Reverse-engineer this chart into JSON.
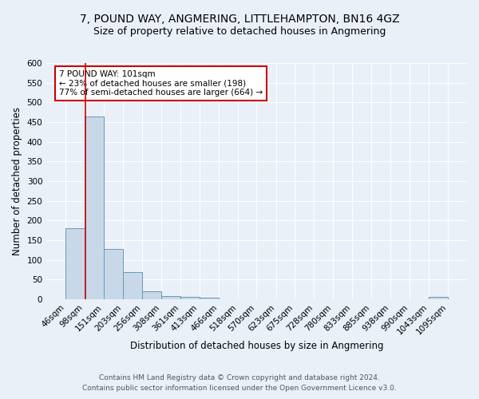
{
  "title": "7, POUND WAY, ANGMERING, LITTLEHAMPTON, BN16 4GZ",
  "subtitle": "Size of property relative to detached houses in Angmering",
  "xlabel": "Distribution of detached houses by size in Angmering",
  "ylabel": "Number of detached properties",
  "footnote1": "Contains HM Land Registry data © Crown copyright and database right 2024.",
  "footnote2": "Contains public sector information licensed under the Open Government Licence v3.0.",
  "bar_edges": [
    46,
    98,
    151,
    203,
    256,
    308,
    361,
    413,
    466,
    518,
    570,
    623,
    675,
    728,
    780,
    833,
    885,
    938,
    990,
    1043,
    1095
  ],
  "bar_heights": [
    180,
    465,
    128,
    70,
    20,
    8,
    6,
    5,
    0,
    0,
    0,
    0,
    0,
    0,
    0,
    0,
    0,
    0,
    0,
    6,
    0
  ],
  "bar_color": "#c8d8e8",
  "bar_edgecolor": "#6699bb",
  "vline_x": 101,
  "vline_color": "#cc0000",
  "annotation_text": "7 POUND WAY: 101sqm\n← 23% of detached houses are smaller (198)\n77% of semi-detached houses are larger (664) →",
  "annotation_box_color": "white",
  "annotation_box_edgecolor": "#cc0000",
  "ylim": [
    0,
    600
  ],
  "yticks": [
    0,
    50,
    100,
    150,
    200,
    250,
    300,
    350,
    400,
    450,
    500,
    550,
    600
  ],
  "bg_color": "#eaf0f8",
  "plot_bg_color": "#eaf0f8",
  "grid_color": "white",
  "title_fontsize": 10,
  "subtitle_fontsize": 9,
  "label_fontsize": 8.5,
  "tick_fontsize": 7.5,
  "footnote_fontsize": 6.5
}
